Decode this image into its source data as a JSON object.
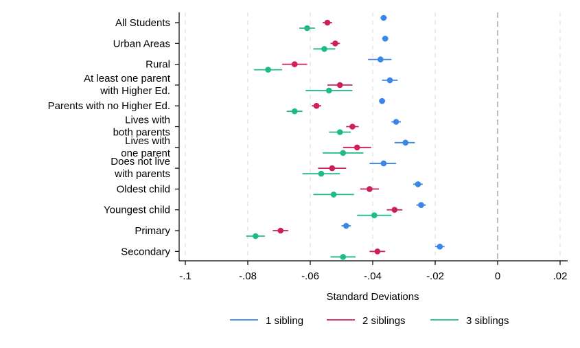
{
  "chart_data": {
    "type": "scatter",
    "subtype": "coefficient-plot",
    "orientation": "horizontal",
    "xlabel": "Standard Deviations",
    "xlim": [
      -0.1,
      0.02
    ],
    "xticks": [
      -0.1,
      -0.08,
      -0.06,
      -0.04,
      -0.02,
      0,
      0.02
    ],
    "xtick_labels": [
      "-.1",
      "-.08",
      "-.06",
      "-.04",
      "-.02",
      "0",
      ".02"
    ],
    "grid": "vertical dashed at x ticks",
    "reference_line": 0,
    "legend_position": "bottom",
    "categories": [
      [
        "All Students"
      ],
      [
        "Urban Areas"
      ],
      [
        "Rural"
      ],
      [
        "At least one parent",
        "with Higher Ed."
      ],
      [
        "Parents with no Higher Ed."
      ],
      [
        "Lives with",
        "both parents"
      ],
      [
        "Lives with",
        "one parent"
      ],
      [
        "Does not live",
        "with parents"
      ],
      [
        "Oldest child"
      ],
      [
        "Youngest child"
      ],
      [
        "Primary"
      ],
      [
        "Secondary"
      ]
    ],
    "series": [
      {
        "name": "1 sibling",
        "color": "#3a86e8",
        "estimates": [
          -0.0365,
          -0.036,
          -0.0375,
          -0.0345,
          -0.037,
          -0.0325,
          -0.0295,
          -0.0365,
          -0.0255,
          -0.0245,
          -0.0485,
          -0.0185
        ],
        "ci_low": [
          -0.0375,
          -0.037,
          -0.0415,
          -0.037,
          -0.038,
          -0.034,
          -0.033,
          -0.041,
          -0.027,
          -0.026,
          -0.05,
          -0.02
        ],
        "ci_high": [
          -0.0355,
          -0.035,
          -0.034,
          -0.032,
          -0.036,
          -0.031,
          -0.0265,
          -0.0325,
          -0.024,
          -0.023,
          -0.047,
          -0.017
        ]
      },
      {
        "name": "2 siblings",
        "color": "#cc1f5b",
        "estimates": [
          -0.0545,
          -0.052,
          -0.065,
          -0.0505,
          -0.058,
          -0.0465,
          -0.045,
          -0.053,
          -0.041,
          -0.033,
          -0.0695,
          -0.0385
        ],
        "ci_low": [
          -0.056,
          -0.0535,
          -0.069,
          -0.0545,
          -0.0595,
          -0.0485,
          -0.0495,
          -0.0575,
          -0.044,
          -0.0355,
          -0.072,
          -0.041
        ],
        "ci_high": [
          -0.053,
          -0.0505,
          -0.061,
          -0.0465,
          -0.0565,
          -0.0445,
          -0.0405,
          -0.0485,
          -0.038,
          -0.0305,
          -0.067,
          -0.036
        ]
      },
      {
        "name": "3 siblings",
        "color": "#1fb98a",
        "estimates": [
          -0.061,
          -0.0555,
          -0.0735,
          -0.054,
          -0.065,
          -0.0505,
          -0.0495,
          -0.0565,
          -0.0525,
          -0.0395,
          -0.0775,
          -0.0495
        ],
        "ci_low": [
          -0.0635,
          -0.059,
          -0.078,
          -0.0615,
          -0.0675,
          -0.054,
          -0.056,
          -0.0625,
          -0.059,
          -0.045,
          -0.0805,
          -0.0535
        ],
        "ci_high": [
          -0.0585,
          -0.052,
          -0.069,
          -0.0465,
          -0.0625,
          -0.047,
          -0.043,
          -0.0505,
          -0.046,
          -0.034,
          -0.0745,
          -0.0455
        ]
      }
    ]
  }
}
